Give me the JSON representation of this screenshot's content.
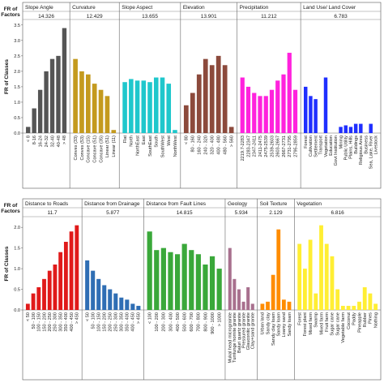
{
  "ylabel_factors": "FR of\nFactors",
  "ylabel_classes": "FR of Classes",
  "chart_data": [
    {
      "type": "bar",
      "yticks": [
        "0.0",
        "0.5",
        "1.0",
        "1.5",
        "2.0",
        "2.5",
        "3.0",
        "3.5"
      ],
      "ylim": [
        0,
        3.6
      ],
      "groups": [
        {
          "name": "Slope Angle",
          "fr": "14.326",
          "color": "#555555",
          "categories": [
            "< 8",
            "8-16",
            "16-24",
            "24-32",
            "32-40",
            "40-48",
            "> 48"
          ],
          "values": [
            0.2,
            0.8,
            1.4,
            2.0,
            2.4,
            2.5,
            3.4
          ]
        },
        {
          "name": "Curvature",
          "fr": "12.429",
          "color": "#c49a1e",
          "categories": [
            "Convex (33)",
            "Convex (53)",
            "Concave (15)",
            "Concave (51)",
            "Concave (35)",
            "Linear (51)",
            "Linear (11)"
          ],
          "values": [
            2.4,
            2.0,
            1.9,
            1.6,
            1.4,
            1.2,
            0.1
          ]
        },
        {
          "name": "Slope Aspect",
          "fr": "13.655",
          "color": "#1fc7cc",
          "categories": [
            "Flat",
            "North",
            "NorthEast",
            "East",
            "SouthEast",
            "South",
            "SouthWest",
            "West",
            "NorthWest"
          ],
          "values": [
            1.65,
            1.75,
            1.7,
            1.7,
            1.65,
            1.8,
            1.8,
            1.6,
            0.1
          ]
        },
        {
          "name": "Elevation",
          "fr": "13.901",
          "color": "#8c4a3c",
          "categories": [
            "< 80",
            "80 - 160",
            "160 - 240",
            "240 - 320",
            "320 - 400",
            "400 - 480",
            "480 - 560",
            "> 560"
          ],
          "values": [
            0.9,
            1.3,
            1.9,
            2.4,
            2.2,
            2.5,
            2.2,
            0.2
          ]
        },
        {
          "name": "Precipitation",
          "fr": "11.212",
          "color": "#ff22dd",
          "categories": [
            "2219.7-2283",
            "2283-2347",
            "2347-2411",
            "2411-2475",
            "2475-2539",
            "2539-2603",
            "2603-2667",
            "2667-2731",
            "2731-2795",
            "2795-2859"
          ],
          "values": [
            1.8,
            1.5,
            1.3,
            1.2,
            1.2,
            1.4,
            1.7,
            1.9,
            2.6,
            1.4
          ]
        },
        {
          "name": "Land Use/ Land Cover",
          "fr": "6.783",
          "color": "#1f2fff",
          "categories": [
            "Forest",
            "Cultivation",
            "Settlement",
            "Transport",
            "Vegetation",
            "Education",
            "Govt Institution",
            "Mining",
            "Public Utility",
            "Plains, Hills",
            "Buildings",
            "Religious Area",
            "Business",
            "Sea, Lake, River",
            "Livestock"
          ],
          "values": [
            1.5,
            1.2,
            1.1,
            0.0,
            1.8,
            0.0,
            0.0,
            0.2,
            0.25,
            0.2,
            0.3,
            0.3,
            0.0,
            0.3,
            0.0
          ]
        }
      ]
    },
    {
      "type": "bar",
      "yticks": [
        "0.0",
        "0.5",
        "1.0",
        "1.5",
        "2.0"
      ],
      "ylim": [
        0,
        2.2
      ],
      "groups": [
        {
          "name": "Distance to Roads",
          "fr": "11.7",
          "color": "#e01a1a",
          "categories": [
            "< 50",
            "50 - 100",
            "100 - 150",
            "150 - 200",
            "200 - 250",
            "250 - 300",
            "300 - 350",
            "350 - 400",
            "400 - 450",
            "> 450"
          ],
          "values": [
            0.15,
            0.4,
            0.55,
            0.75,
            0.95,
            1.1,
            1.4,
            1.65,
            1.9,
            2.05
          ]
        },
        {
          "name": "Distance from Drainage",
          "fr": "5.877",
          "color": "#2f6eb4",
          "categories": [
            "< 50",
            "50 - 100",
            "100 - 150",
            "150 - 200",
            "200 - 250",
            "250 - 300",
            "300 - 350",
            "350 - 400",
            "400 - 450",
            "> 450"
          ],
          "values": [
            1.2,
            0.95,
            0.75,
            0.6,
            0.5,
            0.4,
            0.3,
            0.25,
            0.15,
            0.1
          ]
        },
        {
          "name": "Distance from Fault Lines",
          "fr": "14.815",
          "color": "#3aa83a",
          "categories": [
            "< 100",
            "100 - 200",
            "200 - 300",
            "300 - 400",
            "400 - 500",
            "500 - 600",
            "600 - 700",
            "700 - 800",
            "800 - 900",
            "900 - 1000",
            "> 1000"
          ],
          "values": [
            1.9,
            1.45,
            1.5,
            1.4,
            1.35,
            1.6,
            1.45,
            1.35,
            1.1,
            1.3,
            1.0
          ]
        },
        {
          "name": "Geology",
          "fr": "5.934",
          "color": "#a8708e",
          "categories": [
            "Mukal head micrograinite",
            "Tumlunge hornite granite",
            "Baluri quartz granite",
            "Pressured granite",
            "Glauconitic granite",
            "Clay+sand granite"
          ],
          "values": [
            1.5,
            0.75,
            0.5,
            0.2,
            0.55,
            0.15
          ]
        },
        {
          "name": "Soil Texture",
          "fr": "2.129",
          "color": "#ff8c00",
          "categories": [
            "Urban land",
            "Sandy clay",
            "Sandy clay loam",
            "Sandy loam",
            "Loamy sand",
            "Sandy loam"
          ],
          "values": [
            0.15,
            0.2,
            0.85,
            1.95,
            0.25,
            0.2
          ]
        },
        {
          "name": "Vegetation",
          "fr": "6.816",
          "color": "#ffee33",
          "categories": [
            "Forest",
            "Forest plant",
            "Mixed farm",
            "Swamp",
            "Mixed farm",
            "Fruit farm",
            "Sugar cane",
            "Sugar cane",
            "Vegetable farm",
            "Coconut",
            "Paddy",
            "Pineapple",
            "Rubber",
            "Pines",
            "Nothing"
          ],
          "values": [
            1.6,
            1.0,
            1.7,
            0.4,
            2.05,
            1.6,
            1.3,
            0.5,
            0.1,
            0.1,
            0.1,
            0.2,
            0.55,
            0.4,
            0.15
          ]
        }
      ]
    }
  ]
}
